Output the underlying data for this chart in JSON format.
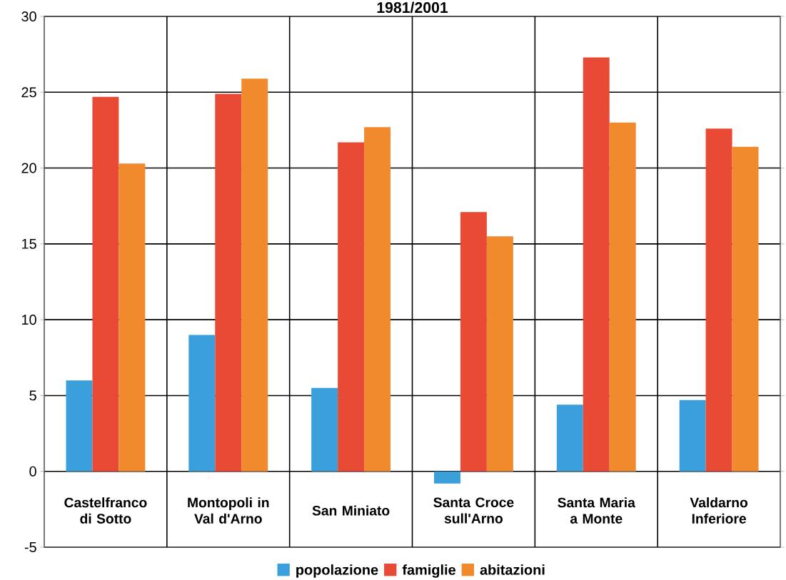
{
  "chart_data": {
    "type": "bar",
    "title": "1981/2001",
    "categories": [
      "Castelfranco di Sotto",
      "Montopoli in Val d'Arno",
      "San Miniato",
      "Santa Croce sull'Arno",
      "Santa Maria a Monte",
      "Valdarno Inferiore"
    ],
    "series": [
      {
        "name": "popolazione",
        "color": "#3a9fdb",
        "values": [
          6.0,
          9.0,
          5.5,
          -0.8,
          4.4,
          4.7
        ]
      },
      {
        "name": "famiglie",
        "color": "#e84a35",
        "values": [
          24.7,
          24.9,
          21.7,
          17.1,
          27.3,
          22.6
        ]
      },
      {
        "name": "abitazioni",
        "color": "#f08a2c",
        "values": [
          20.3,
          25.9,
          22.7,
          15.5,
          23.0,
          21.4
        ]
      }
    ],
    "ylim": [
      -5,
      30
    ],
    "yticks": [
      -5,
      0,
      5,
      10,
      15,
      20,
      25,
      30
    ],
    "grid": "y",
    "legend": "bottom"
  }
}
